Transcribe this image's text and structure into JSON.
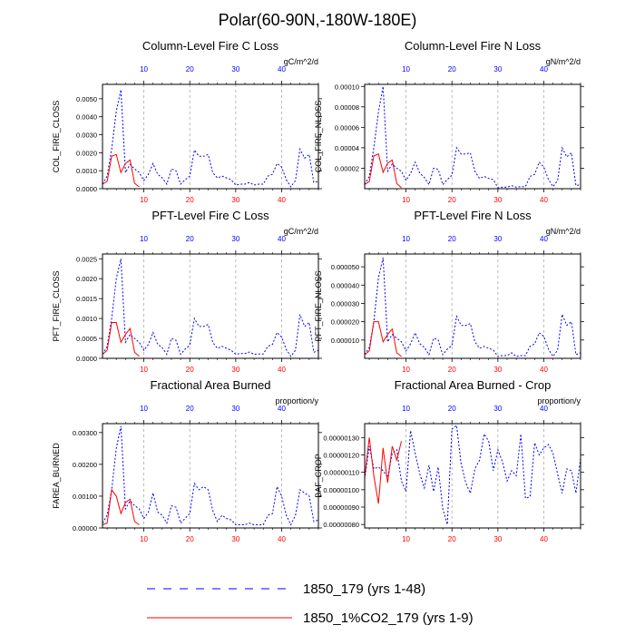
{
  "figure": {
    "title": "Polar(60-90N,-180W-180E)"
  },
  "legend": {
    "entries": [
      {
        "label": "1850_179 (yrs 1-48)",
        "color": "#0000ff",
        "style": "dashed"
      },
      {
        "label": "1850_1%CO2_179 (yrs 1-9)",
        "color": "#ff0000",
        "style": "solid"
      }
    ]
  },
  "colors": {
    "series1": "#0000ff",
    "series2": "#ff0000",
    "grid": "#aaaaaa",
    "axis": "#000000"
  },
  "chart_data": [
    {
      "type": "line",
      "title": "Column-Level Fire C Loss",
      "ylabel": "COL_FIRE_CLOSS",
      "units": "gC/m^2/d",
      "xlim": [
        1,
        48
      ],
      "ylim": [
        0,
        0.0058
      ],
      "xticks": [
        10,
        20,
        30,
        40
      ],
      "yticks": [
        0,
        0.001,
        0.002,
        0.003,
        0.004,
        0.005
      ],
      "ytick_labels": [
        "0.0000",
        "0.0010",
        "0.0020",
        "0.0030",
        "0.0040",
        "0.0050"
      ],
      "grid_x": true,
      "series": [
        {
          "x": [
            1,
            2,
            3,
            4,
            5,
            6,
            7,
            8,
            9,
            10,
            11,
            12,
            13,
            14,
            15,
            16,
            17,
            18,
            19,
            20,
            21,
            22,
            23,
            24,
            25,
            26,
            27,
            28,
            29,
            30,
            31,
            32,
            33,
            34,
            35,
            36,
            37,
            38,
            39,
            40,
            41,
            42,
            43,
            44,
            45,
            46,
            47,
            48
          ],
          "values": [
            0.00025,
            0.0007,
            0.0022,
            0.0043,
            0.0055,
            0.0009,
            0.00135,
            0.0011,
            0.0009,
            0.00045,
            0.0008,
            0.0014,
            0.0008,
            0.0006,
            0.00025,
            0.0011,
            0.001,
            0.00025,
            0.0005,
            0.0007,
            0.00215,
            0.0018,
            0.0018,
            0.0019,
            0.0009,
            0.0006,
            0.0007,
            0.0006,
            0.0005,
            0.0002,
            0.00025,
            0.00025,
            0.00035,
            0.0002,
            0.00025,
            0.00025,
            0.0007,
            0.0008,
            0.0014,
            0.0012,
            0.0005,
            0.0001,
            0.00045,
            0.0022,
            0.0017,
            0.0019,
            0.00035,
            0.0004
          ]
        },
        {
          "x": [
            1,
            2,
            3,
            4,
            5,
            6,
            7,
            8,
            9
          ],
          "values": [
            0.00025,
            0.0004,
            0.0018,
            0.0019,
            0.0009,
            0.0014,
            0.0016,
            0.0003,
            0.0001
          ]
        }
      ]
    },
    {
      "type": "line",
      "title": "Column-Level Fire N Loss",
      "ylabel": "COL_FIRE_NLOSS",
      "units": "gN/m^2/d",
      "xlim": [
        1,
        48
      ],
      "ylim": [
        0,
        0.000102
      ],
      "xticks": [
        10,
        20,
        30,
        40
      ],
      "yticks": [
        2e-05,
        4e-05,
        6e-05,
        8e-05,
        0.0001
      ],
      "ytick_labels": [
        "0.00002",
        "0.00004",
        "0.00006",
        "0.00008",
        "0.00010"
      ],
      "grid_x": true,
      "series": [
        {
          "x": [
            1,
            2,
            3,
            4,
            5,
            6,
            7,
            8,
            9,
            10,
            11,
            12,
            13,
            14,
            15,
            16,
            17,
            18,
            19,
            20,
            21,
            22,
            23,
            24,
            25,
            26,
            27,
            28,
            29,
            30,
            31,
            32,
            33,
            34,
            35,
            36,
            37,
            38,
            39,
            40,
            41,
            42,
            43,
            44,
            45,
            46,
            47,
            48
          ],
          "values": [
            4e-06,
            1.2e-05,
            4e-05,
            7.5e-05,
            0.0001,
            1.7e-05,
            2.4e-05,
            2e-05,
            1.7e-05,
            8e-06,
            1.5e-05,
            2.6e-05,
            1.5e-05,
            1.1e-05,
            4e-06,
            2e-05,
            1.9e-05,
            4e-06,
            9e-06,
            1.3e-05,
            4e-05,
            3.4e-05,
            3.4e-05,
            3.5e-05,
            1.7e-05,
            1e-05,
            1.2e-05,
            1e-05,
            9e-06,
            1e-06,
            1.5e-06,
            1.5e-06,
            3e-06,
            1.5e-06,
            2e-06,
            2e-06,
            1.2e-05,
            1.4e-05,
            2.6e-05,
            2.1e-05,
            9e-06,
            2e-06,
            8e-06,
            4e-05,
            3.1e-05,
            3.5e-05,
            3e-06,
            4e-06
          ]
        },
        {
          "x": [
            1,
            2,
            3,
            4,
            5,
            6,
            7,
            8,
            9
          ],
          "values": [
            4e-06,
            7e-06,
            3.2e-05,
            3.4e-05,
            1.6e-05,
            2.5e-05,
            2.8e-05,
            5e-06,
            1e-06
          ]
        }
      ]
    },
    {
      "type": "line",
      "title": "PFT-Level Fire C Loss",
      "ylabel": "PFT_FIRE_CLOSS",
      "units": "gC/m^2/d",
      "xlim": [
        1,
        48
      ],
      "ylim": [
        0,
        0.00262
      ],
      "xticks": [
        10,
        20,
        30,
        40
      ],
      "yticks": [
        0,
        0.0005,
        0.001,
        0.0015,
        0.002,
        0.0025
      ],
      "ytick_labels": [
        "0.0000",
        "0.0005",
        "0.0010",
        "0.0015",
        "0.0020",
        "0.0025"
      ],
      "grid_x": true,
      "series": [
        {
          "x": [
            1,
            2,
            3,
            4,
            5,
            6,
            7,
            8,
            9,
            10,
            11,
            12,
            13,
            14,
            15,
            16,
            17,
            18,
            19,
            20,
            21,
            22,
            23,
            24,
            25,
            26,
            27,
            28,
            29,
            30,
            31,
            32,
            33,
            34,
            35,
            36,
            37,
            38,
            39,
            40,
            41,
            42,
            43,
            44,
            45,
            46,
            47,
            48
          ],
          "values": [
            0.0001,
            0.0003,
            0.001,
            0.002,
            0.0025,
            0.0004,
            0.0006,
            0.0005,
            0.0004,
            0.0002,
            0.00035,
            0.00065,
            0.00035,
            0.00027,
            0.0001,
            0.0005,
            0.00045,
            0.0001,
            0.00023,
            0.00033,
            0.001,
            0.0008,
            0.0008,
            0.00085,
            0.0004,
            0.00025,
            0.0003,
            0.00025,
            0.0002,
            0.0001,
            0.00012,
            0.00012,
            0.00016,
            0.0001,
            0.00011,
            0.00011,
            0.0003,
            0.00035,
            0.00065,
            0.00053,
            0.00022,
            5e-05,
            0.0002,
            0.0011,
            0.0008,
            0.0009,
            0.00015,
            0.0002
          ]
        },
        {
          "x": [
            1,
            2,
            3,
            4,
            5,
            6,
            7,
            8,
            9
          ],
          "values": [
            0.0001,
            0.0002,
            0.0009,
            0.0009,
            0.0004,
            0.0006,
            0.00075,
            0.00015,
            5e-05
          ]
        }
      ]
    },
    {
      "type": "line",
      "title": "PFT-Level Fire N Loss",
      "ylabel": "PFT_FIRE_NLOSS",
      "units": "gN/m^2/d",
      "xlim": [
        1,
        48
      ],
      "ylim": [
        0,
        5.7e-05
      ],
      "xticks": [
        10,
        20,
        30,
        40
      ],
      "yticks": [
        1e-05,
        2e-05,
        3e-05,
        4e-05,
        5e-05
      ],
      "ytick_labels": [
        "0.000010",
        "0.000020",
        "0.000030",
        "0.000040",
        "0.000050"
      ],
      "grid_x": true,
      "series": [
        {
          "x": [
            1,
            2,
            3,
            4,
            5,
            6,
            7,
            8,
            9,
            10,
            11,
            12,
            13,
            14,
            15,
            16,
            17,
            18,
            19,
            20,
            21,
            22,
            23,
            24,
            25,
            26,
            27,
            28,
            29,
            30,
            31,
            32,
            33,
            34,
            35,
            36,
            37,
            38,
            39,
            40,
            41,
            42,
            43,
            44,
            45,
            46,
            47,
            48
          ],
          "values": [
            2e-06,
            6e-06,
            2e-05,
            4.4e-05,
            5.5e-05,
            9e-06,
            1.3e-05,
            1.1e-05,
            9e-06,
            4e-06,
            8e-06,
            1.4e-05,
            8e-06,
            6e-06,
            2e-06,
            1.1e-05,
            1e-05,
            2e-06,
            5e-06,
            7e-06,
            2.3e-05,
            1.8e-05,
            1.8e-05,
            1.9e-05,
            9e-06,
            5.5e-06,
            6.5e-06,
            5.5e-06,
            4.5e-06,
            1e-06,
            1.5e-06,
            1.5e-06,
            3e-06,
            1e-06,
            1.5e-06,
            1.5e-06,
            6.5e-06,
            8e-06,
            1.4e-05,
            1.2e-05,
            5e-06,
            1e-06,
            4.5e-06,
            2.4e-05,
            1.8e-05,
            2e-05,
            2e-06,
            3e-06
          ]
        },
        {
          "x": [
            1,
            2,
            3,
            4,
            5,
            6,
            7,
            8,
            9
          ],
          "values": [
            2e-06,
            4e-06,
            2e-05,
            2e-05,
            9e-06,
            1.3e-05,
            1.6e-05,
            3e-06,
            1e-06
          ]
        }
      ]
    },
    {
      "type": "line",
      "title": "Fractional Area Burned",
      "ylabel": "FAREA_BURNED",
      "units": "proportion/y",
      "xlim": [
        1,
        48
      ],
      "ylim": [
        0,
        0.00328
      ],
      "xticks": [
        10,
        20,
        30,
        40
      ],
      "yticks": [
        0,
        0.001,
        0.002,
        0.003
      ],
      "ytick_labels": [
        "0.00000",
        "0.00100",
        "0.00200",
        "0.00300"
      ],
      "grid_x": true,
      "series": [
        {
          "x": [
            1,
            2,
            3,
            4,
            5,
            6,
            7,
            8,
            9,
            10,
            11,
            12,
            13,
            14,
            15,
            16,
            17,
            18,
            19,
            20,
            21,
            22,
            23,
            24,
            25,
            26,
            27,
            28,
            29,
            30,
            31,
            32,
            33,
            34,
            35,
            36,
            37,
            38,
            39,
            40,
            41,
            42,
            43,
            44,
            45,
            46,
            47,
            48
          ],
          "values": [
            0.00015,
            0.0004,
            0.0012,
            0.0025,
            0.0032,
            0.0006,
            0.00085,
            0.0007,
            0.0006,
            0.0003,
            0.0005,
            0.0011,
            0.0005,
            0.0004,
            0.00015,
            0.0007,
            0.00065,
            0.00015,
            0.0003,
            0.00045,
            0.0014,
            0.0012,
            0.0013,
            0.0012,
            0.00055,
            0.0002,
            0.0004,
            0.0003,
            0.00025,
            0.0001,
            0.0001,
            0.0001,
            0.00015,
            0.0001,
            0.0001,
            0.0001,
            0.0004,
            0.00045,
            0.0013,
            0.001,
            0.0004,
            0.0001,
            0.0004,
            0.0012,
            0.0011,
            0.001,
            0.0002,
            0.00025
          ]
        },
        {
          "x": [
            1,
            2,
            3,
            4,
            5,
            6,
            7,
            8,
            9
          ],
          "values": [
            0.0001,
            0.00015,
            0.0012,
            0.001,
            0.00045,
            0.0008,
            0.0009,
            0.0002,
            0.0001
          ]
        }
      ]
    },
    {
      "type": "line",
      "title": "Fractional Area Burned - Crop",
      "ylabel": "BAF_CROP",
      "units": "proportion/y",
      "xlim": [
        1,
        48
      ],
      "ylim": [
        7.8e-08,
        1.38e-07
      ],
      "xticks": [
        10,
        20,
        30,
        40
      ],
      "yticks": [
        8e-08,
        9e-08,
        1e-07,
        1.1e-07,
        1.2e-07,
        1.3e-07
      ],
      "ytick_labels": [
        "0.00000080",
        "0.00000090",
        "0.00000100",
        "0.00000110",
        "0.00000120",
        "0.00000130"
      ],
      "grid_x": true,
      "series": [
        {
          "x": [
            1,
            2,
            3,
            4,
            5,
            6,
            7,
            8,
            9,
            10,
            11,
            12,
            13,
            14,
            15,
            16,
            17,
            18,
            19,
            20,
            21,
            22,
            23,
            24,
            25,
            26,
            27,
            28,
            29,
            30,
            31,
            32,
            33,
            34,
            35,
            36,
            37,
            38,
            39,
            40,
            41,
            42,
            43,
            44,
            45,
            46,
            47,
            48
          ],
          "values": [
            1.06e-07,
            1.25e-07,
            1.12e-07,
            1.13e-07,
            1.11e-07,
            1.07e-07,
            1.21e-07,
            1.23e-07,
            1.05e-07,
            9.9e-08,
            1.34e-07,
            1.21e-07,
            1.09e-07,
            1.01e-07,
            1.14e-07,
            9.9e-08,
            1.13e-07,
            8.9e-08,
            8e-08,
            1.35e-07,
            1.37e-07,
            1.15e-07,
            1.04e-07,
            9.8e-08,
            1.12e-07,
            1.17e-07,
            1.32e-07,
            1.28e-07,
            1.11e-07,
            1.23e-07,
            1.16e-07,
            1.05e-07,
            1.11e-07,
            1.08e-07,
            1.32e-07,
            9.5e-08,
            9.6e-08,
            1.27e-07,
            1.2e-07,
            1.24e-07,
            1.26e-07,
            1.21e-07,
            1.09e-07,
            9.8e-08,
            1.12e-07,
            1.11e-07,
            9.8e-08,
            1.18e-07
          ]
        },
        {
          "x": [
            1,
            2,
            3,
            4,
            5,
            6,
            7,
            8,
            9
          ],
          "values": [
            1.07e-07,
            1.3e-07,
            1.08e-07,
            9.2e-08,
            1.24e-07,
            1.04e-07,
            1.25e-07,
            1.17e-07,
            1.28e-07
          ]
        }
      ]
    }
  ]
}
